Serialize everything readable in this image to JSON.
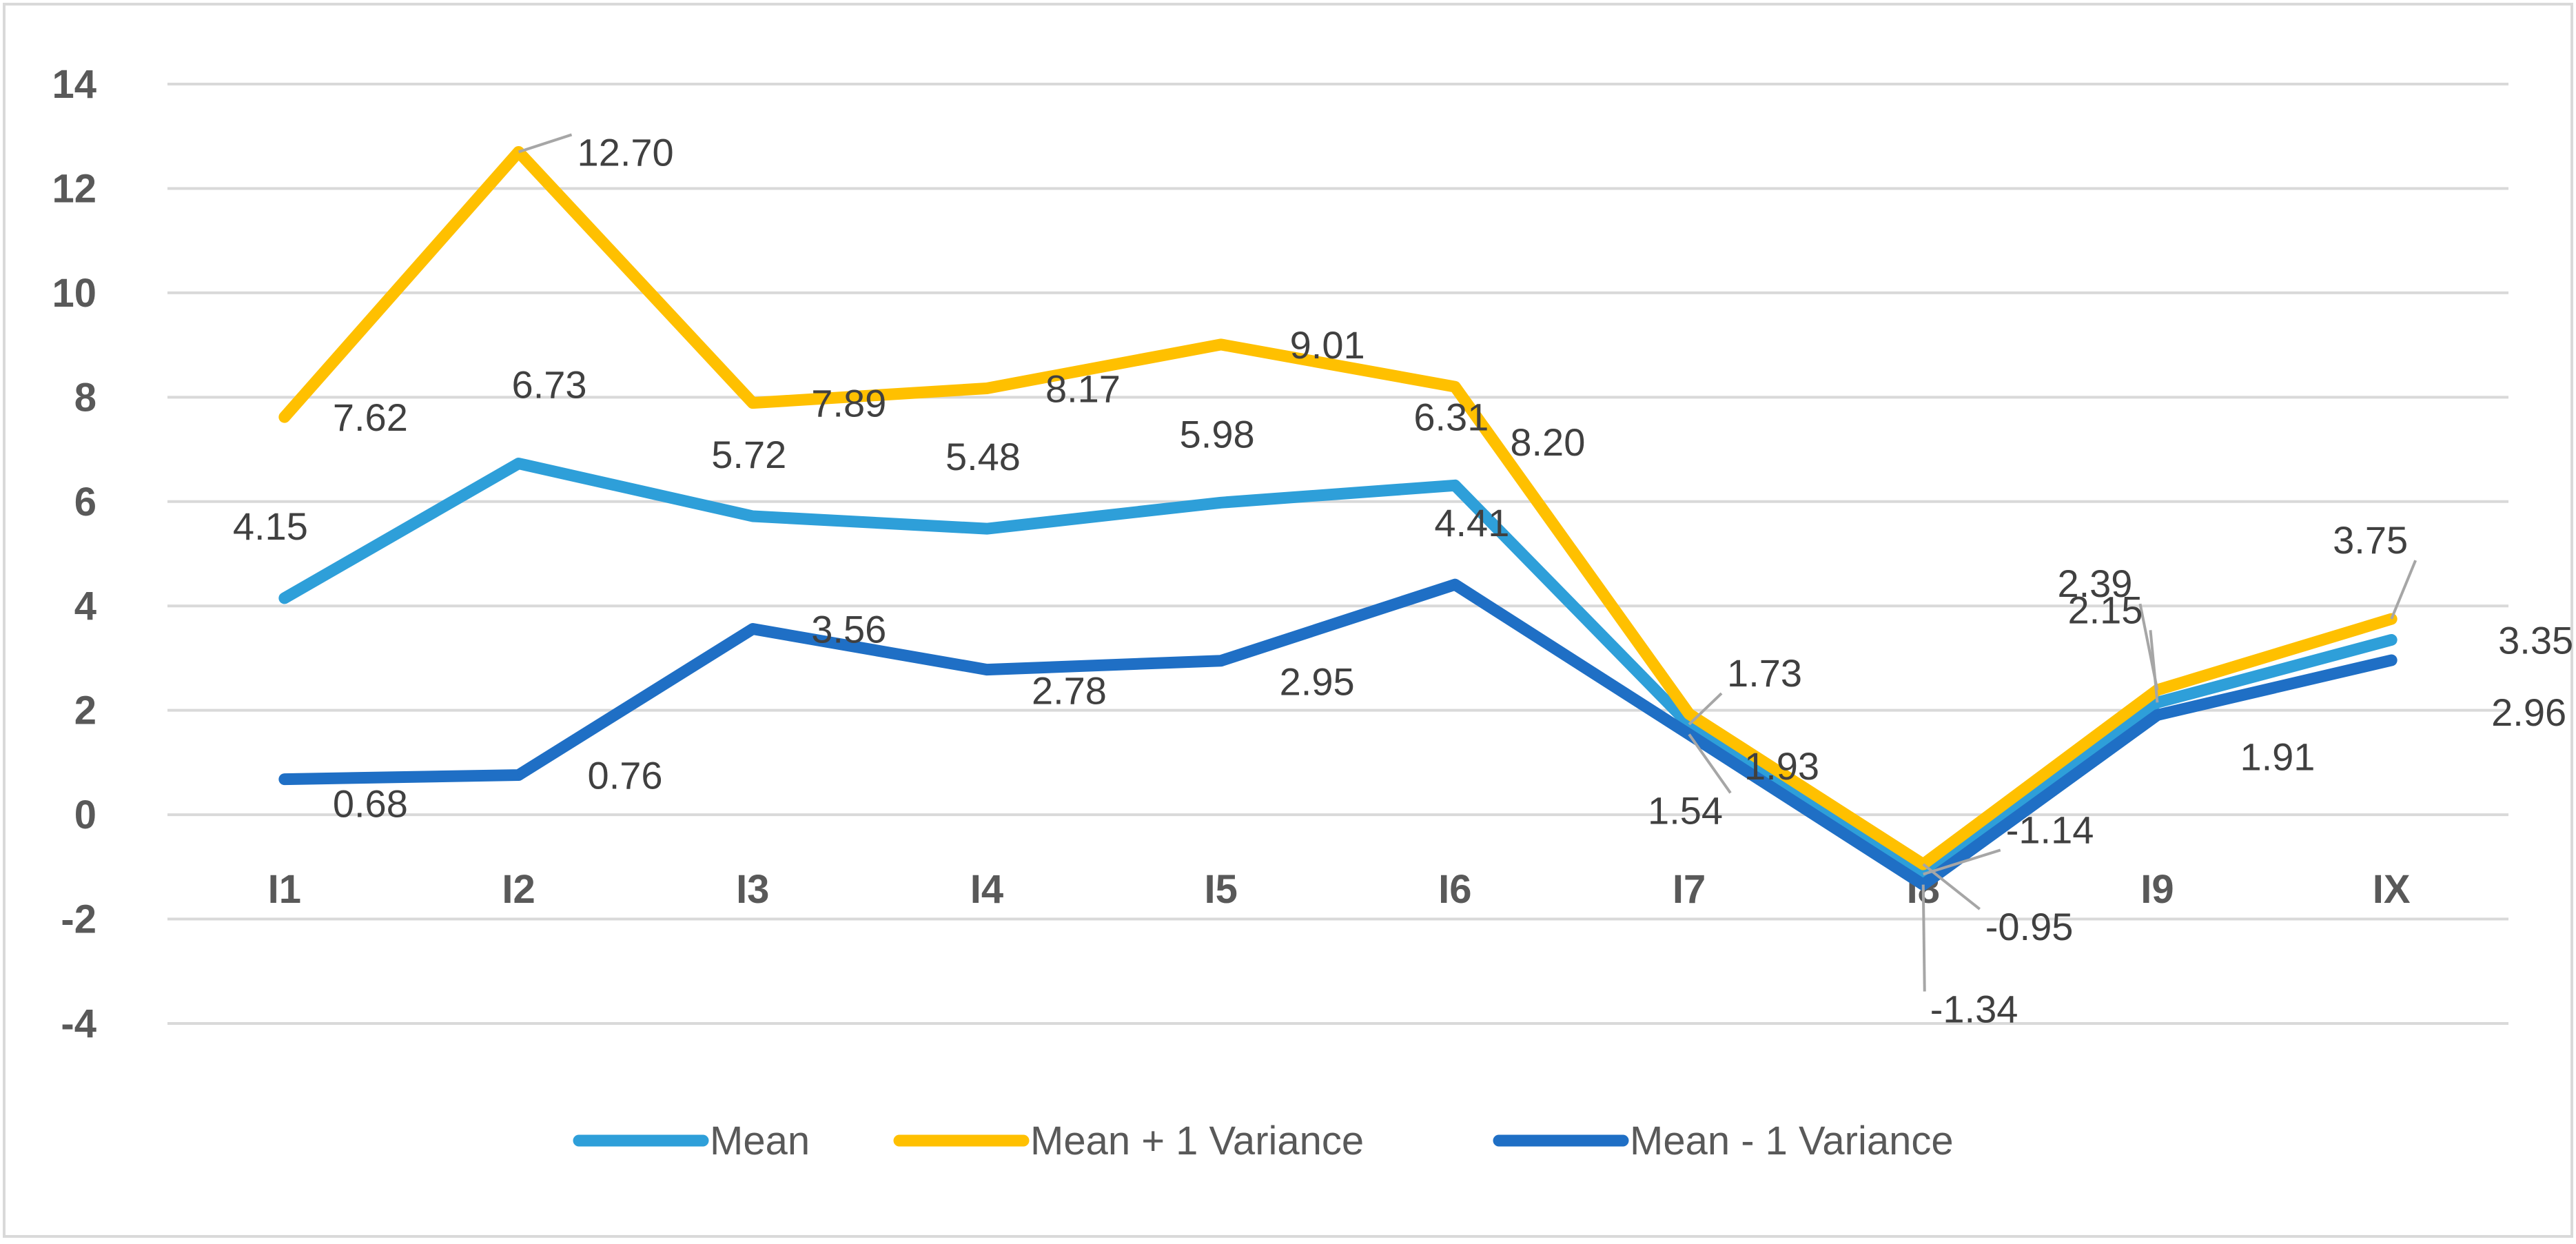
{
  "chart_data": {
    "type": "line",
    "title": "",
    "xlabel": "",
    "ylabel": "",
    "categories": [
      "I1",
      "I2",
      "I3",
      "I4",
      "I5",
      "I6",
      "I7",
      "I8",
      "I9",
      "IX"
    ],
    "ylim": [
      -4,
      14
    ],
    "yticks": [
      14,
      12,
      10,
      8,
      6,
      4,
      2,
      0,
      -2,
      -4
    ],
    "grid": true,
    "legend_position": "bottom",
    "series": [
      {
        "name": "Mean",
        "color": "#2E9FD9",
        "values": [
          4.15,
          6.73,
          5.72,
          5.48,
          5.98,
          6.31,
          1.73,
          -1.14,
          2.15,
          3.35
        ],
        "labels": [
          "4.15",
          "6.73",
          "5.72",
          "5.48",
          "5.98",
          "6.31",
          "1.73",
          "-1.14",
          "2.15",
          "3.35"
        ]
      },
      {
        "name": "Mean + 1 Variance",
        "color": "#FFC000",
        "values": [
          7.62,
          12.7,
          7.89,
          8.17,
          9.01,
          8.2,
          1.93,
          -0.95,
          2.39,
          3.75
        ],
        "labels": [
          "7.62",
          "12.70",
          "7.89",
          "8.17",
          "9.01",
          "8.20",
          "1.93",
          "-0.95",
          "2.39",
          "3.75"
        ]
      },
      {
        "name": "Mean - 1 Variance",
        "color": "#1F6FC5",
        "values": [
          0.68,
          0.76,
          3.56,
          2.78,
          2.95,
          4.41,
          1.54,
          -1.34,
          1.91,
          2.96
        ],
        "labels": [
          "0.68",
          "0.76",
          "3.56",
          "2.78",
          "2.95",
          "4.41",
          "1.54",
          "-1.34",
          "1.91",
          "2.96"
        ]
      }
    ]
  }
}
